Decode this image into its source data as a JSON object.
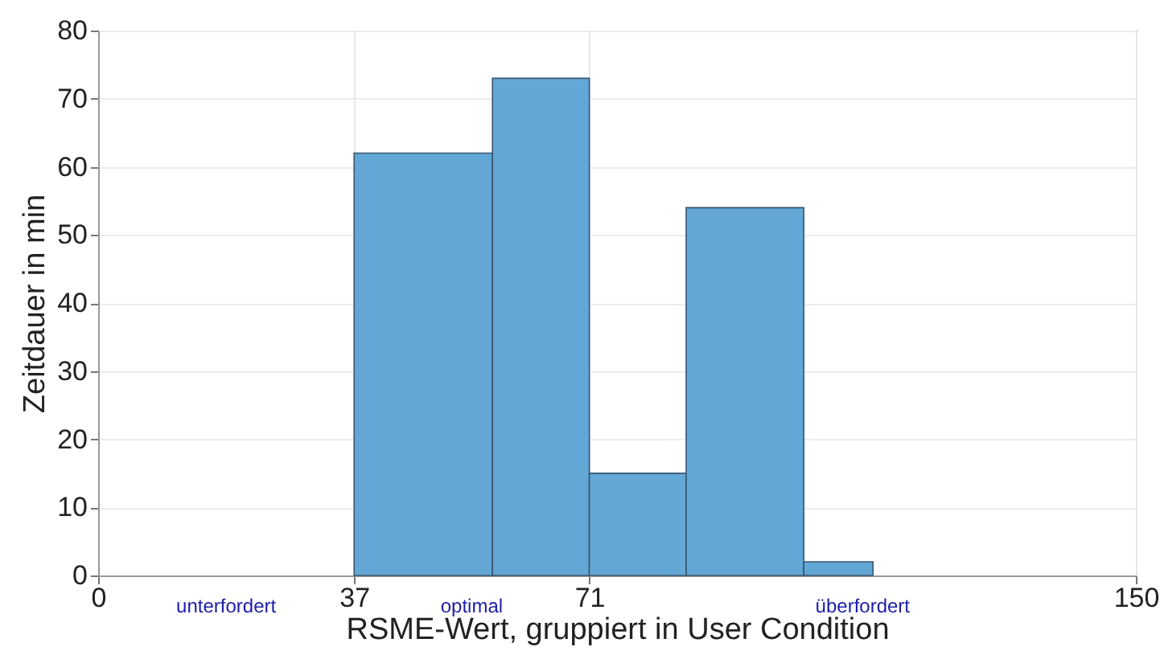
{
  "chart_data": {
    "type": "histogram",
    "xlabel": "RSME-Wert, gruppiert in User Condition",
    "ylabel": "Zeitdauer in min",
    "bins": [
      37,
      57,
      71,
      85,
      102,
      112
    ],
    "values": [
      62,
      73,
      15,
      54,
      2
    ],
    "color": "#62a7d6",
    "xlim": [
      0,
      150
    ],
    "xticks": [
      0,
      37,
      71,
      150
    ],
    "ylim": [
      0,
      80
    ],
    "yticks": [
      0,
      10,
      20,
      30,
      40,
      50,
      60,
      70,
      80
    ],
    "grid": true,
    "annotations": [
      "unterfordert",
      "optimal",
      "überfordert"
    ]
  }
}
